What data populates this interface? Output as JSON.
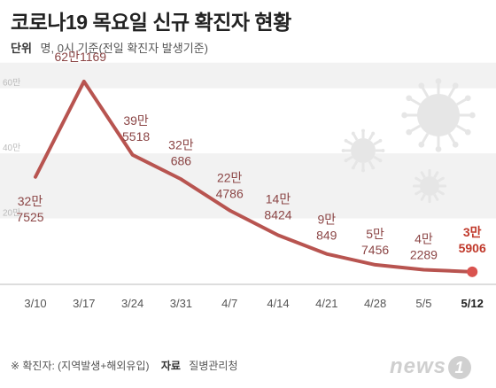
{
  "header": {
    "title": "코로나19 목요일 신규 확진자 현황",
    "unit_label": "단위",
    "unit_text": "명, 0시 기준(전일 확진자 발생기준)"
  },
  "footer": {
    "note": "※ 확진자: (지역발생+해외유입)",
    "source_label": "자료",
    "source": "질병관리청"
  },
  "logo": {
    "text": "news",
    "mark": "1"
  },
  "colors": {
    "line": "#b85450",
    "band": "#f2f2f2",
    "last_point": "#d9534f",
    "virus": "#e6e6e6"
  },
  "chart_data": {
    "type": "line",
    "title": "코로나19 목요일 신규 확진자 현황",
    "x": [
      "3/10",
      "3/17",
      "3/24",
      "3/31",
      "4/7",
      "4/14",
      "4/21",
      "4/28",
      "5/5",
      "5/12"
    ],
    "values": [
      327525,
      621169,
      395518,
      320686,
      224786,
      148424,
      90849,
      57456,
      42289,
      35906
    ],
    "value_labels": [
      [
        "32만",
        "7525"
      ],
      [
        "62만1169",
        ""
      ],
      [
        "39만",
        "5518"
      ],
      [
        "32만",
        "686"
      ],
      [
        "22만",
        "4786"
      ],
      [
        "14만",
        "8424"
      ],
      [
        "9만",
        "849"
      ],
      [
        "5만",
        "7456"
      ],
      [
        "4만",
        "2289"
      ],
      [
        "3만",
        "5906"
      ]
    ],
    "y_ticks": [
      {
        "value": 200000,
        "label": "20만"
      },
      {
        "value": 400000,
        "label": "40만"
      },
      {
        "value": 600000,
        "label": "60만"
      }
    ],
    "ylim": [
      0,
      700000
    ],
    "grid": "bands"
  }
}
